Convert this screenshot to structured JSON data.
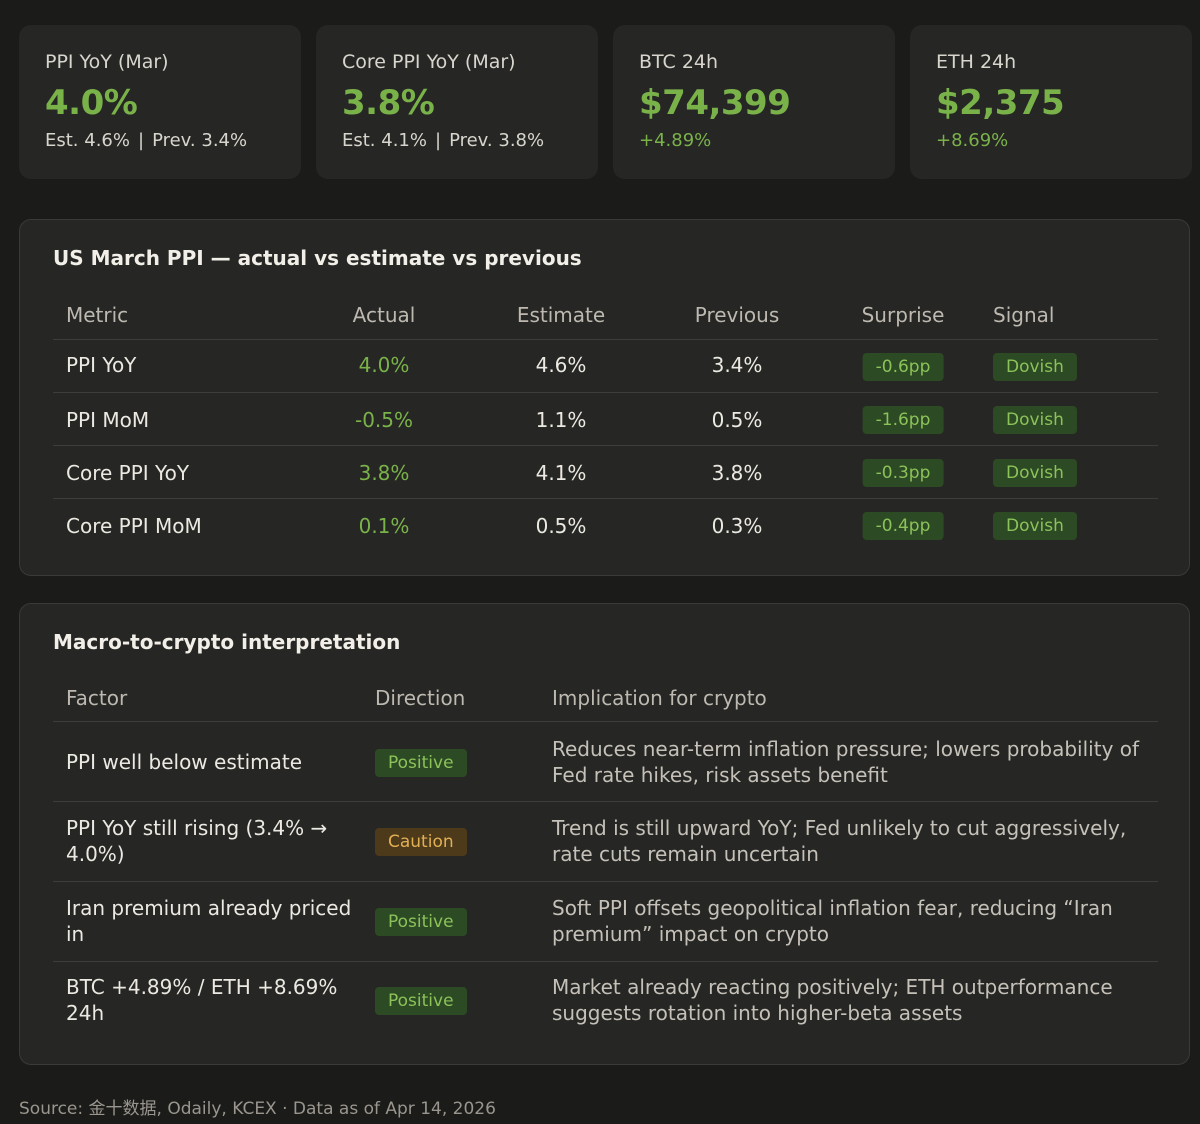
{
  "cards": [
    {
      "label": "PPI YoY (Mar)",
      "value": "4.0%",
      "est": "Est. 4.6%",
      "sep": "|",
      "prev": "Prev. 3.4%"
    },
    {
      "label": "Core PPI YoY (Mar)",
      "value": "3.8%",
      "est": "Est. 4.1%",
      "sep": "|",
      "prev": "Prev. 3.8%"
    },
    {
      "label": "BTC 24h",
      "value": "$74,399",
      "change": "+4.89%"
    },
    {
      "label": "ETH 24h",
      "value": "$2,375",
      "change": "+8.69%"
    }
  ],
  "ppi_table": {
    "title": "US March PPI — actual vs estimate vs previous",
    "headers": {
      "metric": "Metric",
      "actual": "Actual",
      "estimate": "Estimate",
      "previous": "Previous",
      "surprise": "Surprise",
      "signal": "Signal"
    },
    "rows": [
      {
        "metric": "PPI YoY",
        "actual": "4.0%",
        "estimate": "4.6%",
        "previous": "3.4%",
        "surprise": "-0.6pp",
        "signal": "Dovish"
      },
      {
        "metric": "PPI MoM",
        "actual": "-0.5%",
        "estimate": "1.1%",
        "previous": "0.5%",
        "surprise": "-1.6pp",
        "signal": "Dovish"
      },
      {
        "metric": "Core PPI YoY",
        "actual": "3.8%",
        "estimate": "4.1%",
        "previous": "3.8%",
        "surprise": "-0.3pp",
        "signal": "Dovish"
      },
      {
        "metric": "Core PPI MoM",
        "actual": "0.1%",
        "estimate": "0.5%",
        "previous": "0.3%",
        "surprise": "-0.4pp",
        "signal": "Dovish"
      }
    ]
  },
  "macro_table": {
    "title": "Macro-to-crypto interpretation",
    "headers": {
      "factor": "Factor",
      "direction": "Direction",
      "implication": "Implication for crypto"
    },
    "rows": [
      {
        "factor_1": "PPI well below estimate",
        "factor_2": "",
        "direction": "Positive",
        "impl_1": "Reduces near-term inflation pressure; lowers probability of",
        "impl_2": "Fed rate hikes, risk assets benefit"
      },
      {
        "factor_1": "PPI YoY still rising (3.4% →",
        "factor_2": "4.0%)",
        "direction": "Caution",
        "impl_1": "Trend is still upward YoY; Fed unlikely to cut aggressively,",
        "impl_2": "rate cuts remain uncertain"
      },
      {
        "factor_1": "Iran premium already priced",
        "factor_2": "in",
        "direction": "Positive",
        "impl_1": "Soft PPI offsets geopolitical inflation fear, reducing “Iran",
        "impl_2": "premium” impact on crypto"
      },
      {
        "factor_1": "BTC +4.89% / ETH +8.69%",
        "factor_2": "24h",
        "direction": "Positive",
        "impl_1": "Market already reacting positively; ETH outperformance",
        "impl_2": "suggests rotation into higher-beta assets"
      }
    ]
  },
  "source": "Source: 金十数据, Odaily, KCEX · Data as of Apr 14, 2026",
  "colors": {
    "background": "#1b1b1a",
    "card": "#262624",
    "accent_green": "#7ab24a",
    "caution": "#e2b054"
  }
}
